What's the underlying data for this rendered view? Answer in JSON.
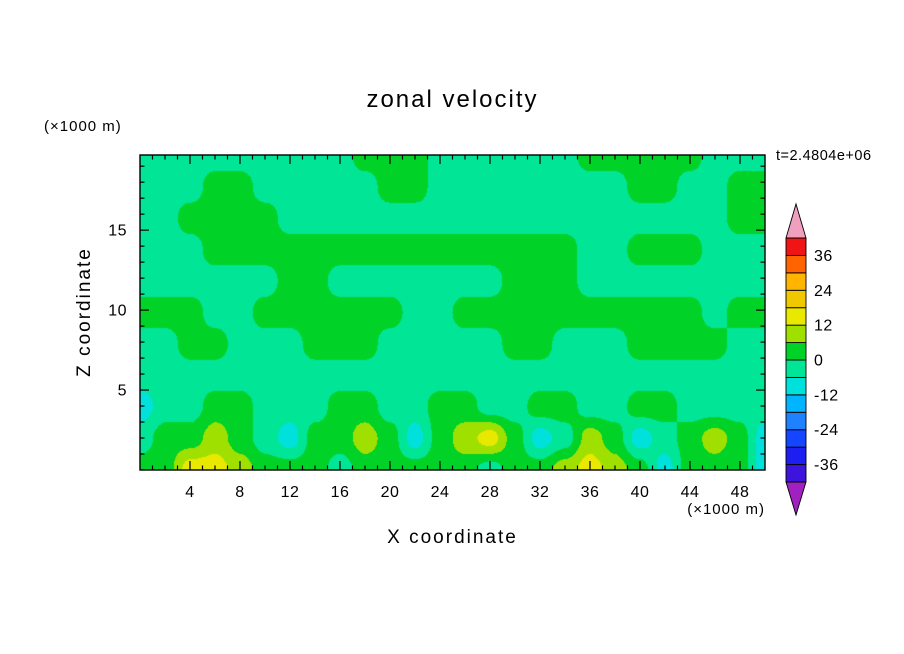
{
  "chart_data": {
    "type": "heatmap",
    "title": "zonal velocity",
    "xlabel": "X coordinate",
    "ylabel": "Z coordinate",
    "x_unit": "(×1000 m)",
    "y_unit": "(×1000 m)",
    "annotation": "t=2.4804e+06",
    "xlim": [
      0,
      50
    ],
    "ylim": [
      0,
      19.7
    ],
    "x_ticks": [
      4,
      8,
      12,
      16,
      20,
      24,
      28,
      32,
      36,
      40,
      44,
      48
    ],
    "x_minor_step": 1,
    "y_ticks": [
      5,
      10,
      15
    ],
    "y_minor_step": 1,
    "legend_position": "right-colorbar",
    "grid_lines": false,
    "colormap": {
      "levels": [
        -42,
        -36,
        -30,
        -24,
        -18,
        -12,
        -6,
        0,
        6,
        12,
        18,
        24,
        30,
        36,
        42
      ],
      "colors": [
        "#3c14dc",
        "#1e1ef0",
        "#1446ff",
        "#1e82ff",
        "#00b4ff",
        "#00e1dc",
        "#00e596",
        "#00d228",
        "#a0e000",
        "#e8e800",
        "#f0c800",
        "#ffb400",
        "#ff6400",
        "#f01414"
      ],
      "under": "#a020c0",
      "over": "#f0a0be"
    },
    "colorbar_labels": [
      36,
      24,
      12,
      0,
      -12,
      -24,
      -36
    ],
    "grid": {
      "description": "approximate zonal velocity field, rows top (z=19.7) to bottom (z=0), cols x=0..50 step 2",
      "values": [
        [
          -3,
          -3,
          -3,
          -3,
          -3,
          -3,
          -3,
          -3,
          -3,
          3,
          3,
          3,
          -3,
          -3,
          -3,
          -3,
          -3,
          -3,
          3,
          3,
          3,
          3,
          3,
          -3,
          -3,
          -3
        ],
        [
          -3,
          -3,
          -3,
          3,
          3,
          -3,
          -3,
          -3,
          -3,
          -3,
          3,
          3,
          -3,
          -3,
          -3,
          -3,
          -3,
          -3,
          -3,
          -3,
          3,
          3,
          -3,
          -3,
          3,
          3
        ],
        [
          -3,
          -3,
          3,
          3,
          3,
          3,
          -3,
          -3,
          -3,
          -3,
          -3,
          -3,
          -3,
          -3,
          -3,
          -3,
          -3,
          -3,
          -3,
          -3,
          -3,
          -3,
          -3,
          -3,
          3,
          3
        ],
        [
          -3,
          -3,
          -3,
          3,
          3,
          3,
          3,
          3,
          3,
          3,
          3,
          3,
          3,
          3,
          3,
          3,
          3,
          3,
          -3,
          -3,
          3,
          3,
          3,
          -3,
          -3,
          -3
        ],
        [
          -3,
          -3,
          -3,
          -3,
          -3,
          -3,
          3,
          3,
          -3,
          -3,
          -3,
          -3,
          -3,
          -3,
          -3,
          3,
          3,
          3,
          -3,
          -3,
          -3,
          -3,
          -3,
          -3,
          -3,
          -3
        ],
        [
          3,
          3,
          3,
          -3,
          -3,
          3,
          3,
          3,
          3,
          3,
          3,
          -3,
          -3,
          3,
          3,
          3,
          3,
          3,
          3,
          3,
          3,
          3,
          3,
          -3,
          3,
          3
        ],
        [
          -3,
          -3,
          3,
          3,
          -3,
          -3,
          -3,
          3,
          3,
          3,
          -3,
          -3,
          -3,
          -3,
          -3,
          3,
          3,
          -3,
          -3,
          -3,
          3,
          3,
          3,
          3,
          -3,
          -3
        ],
        [
          -3,
          -3,
          -3,
          -3,
          -3,
          -3,
          -3,
          -3,
          -3,
          -3,
          -3,
          -3,
          -3,
          -3,
          -3,
          -3,
          -3,
          -3,
          -3,
          -3,
          -3,
          -3,
          -3,
          -3,
          -3,
          -3
        ],
        [
          -9,
          -3,
          -3,
          3,
          3,
          -3,
          -3,
          -3,
          3,
          3,
          -3,
          -3,
          3,
          3,
          -3,
          -3,
          3,
          3,
          -3,
          -3,
          3,
          3,
          -3,
          -3,
          -3,
          -3
        ],
        [
          -3,
          3,
          3,
          9,
          3,
          -3,
          -9,
          3,
          3,
          9,
          3,
          -9,
          3,
          9,
          15,
          3,
          -9,
          -3,
          9,
          3,
          -9,
          -3,
          3,
          9,
          3,
          -9
        ],
        [
          3,
          3,
          15,
          15,
          9,
          3,
          3,
          3,
          -3,
          3,
          3,
          3,
          3,
          3,
          -3,
          3,
          3,
          9,
          15,
          9,
          3,
          -9,
          3,
          3,
          3,
          -9
        ]
      ]
    }
  }
}
